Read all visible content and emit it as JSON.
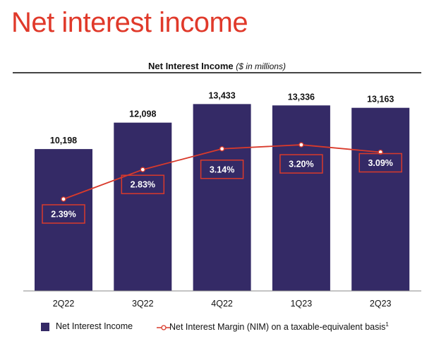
{
  "page_title": "Net interest income",
  "chart_data": {
    "type": "bar+line",
    "title": "Net Interest Income",
    "title_unit": "($ in millions)",
    "categories": [
      "2Q22",
      "3Q22",
      "4Q22",
      "1Q23",
      "2Q23"
    ],
    "series": [
      {
        "name": "Net Interest Income",
        "type": "bar",
        "values": [
          10198,
          12098,
          13433,
          13336,
          13163
        ],
        "labels": [
          "10,198",
          "12,098",
          "13,433",
          "13,336",
          "13,163"
        ],
        "color": "#342a66"
      },
      {
        "name": "Net Interest Margin (NIM) on a taxable-equivalent basis",
        "footnote": "1",
        "type": "line",
        "values": [
          2.39,
          2.83,
          3.14,
          3.2,
          3.09
        ],
        "labels": [
          "2.39%",
          "2.83%",
          "3.14%",
          "3.20%",
          "3.09%"
        ],
        "color": "#d93a2b"
      }
    ],
    "grid": false,
    "legend": "bottom"
  }
}
